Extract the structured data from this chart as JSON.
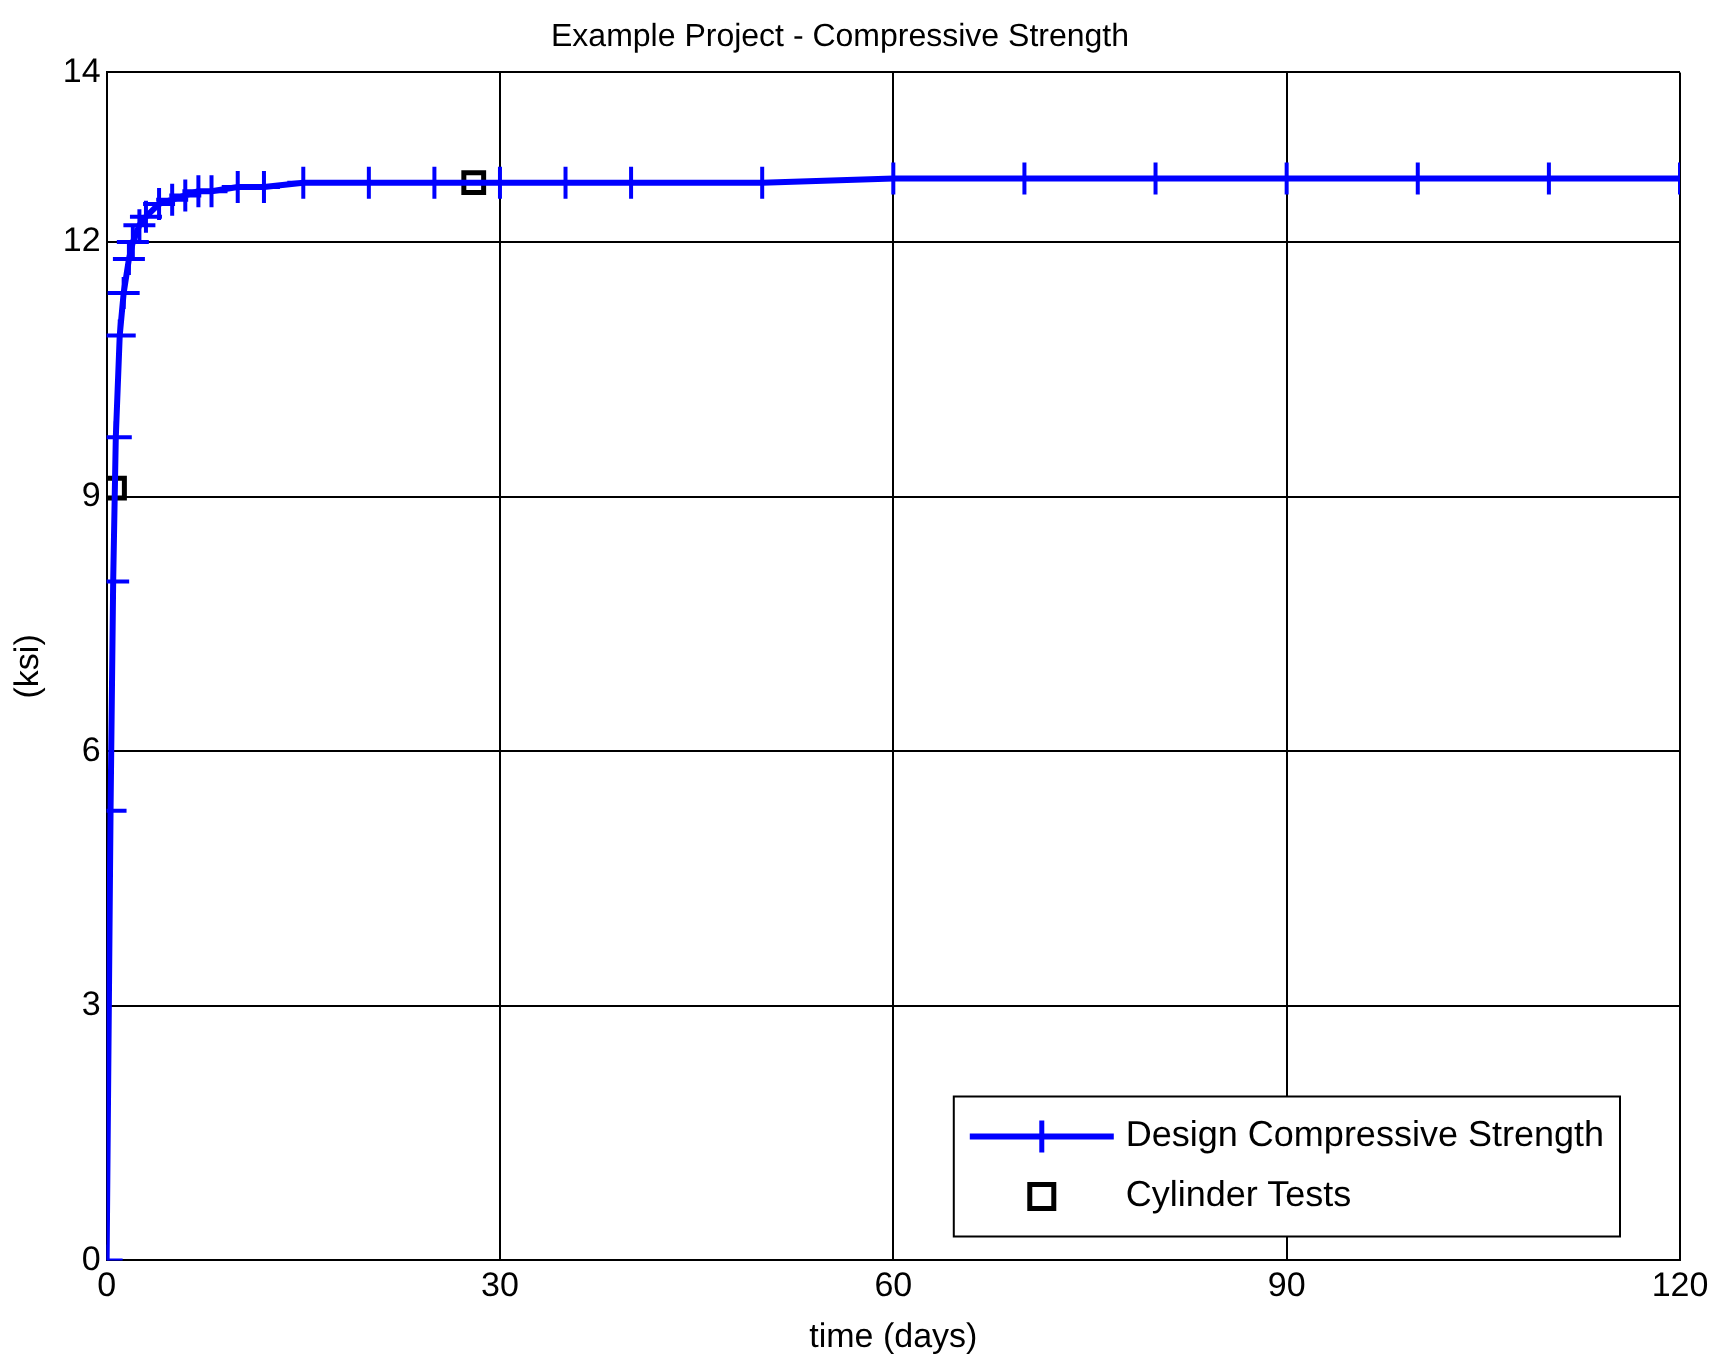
{
  "chart_data": {
    "type": "line",
    "title": "Example Project - Compressive Strength",
    "xlabel": "time (days)",
    "ylabel": "(ksi)",
    "xlim": [
      0,
      120
    ],
    "xticks": [
      0,
      30,
      60,
      90,
      120
    ],
    "ylim": [
      0,
      14
    ],
    "yticks": [
      0,
      3,
      6,
      9,
      12,
      14
    ],
    "grid": true,
    "legend": "bottom right",
    "series": [
      {
        "name": "Design Compressive Strength",
        "type": "line",
        "color": "#0000ff",
        "marker": "cross",
        "line_style": "solid",
        "x": [
          0,
          0.3,
          0.5,
          0.7,
          1,
          1.3,
          1.7,
          2,
          2.5,
          3,
          4,
          5,
          6,
          7,
          8,
          10,
          12,
          15,
          20,
          25,
          30,
          35,
          40,
          50,
          60,
          70,
          80,
          90,
          100,
          110,
          120
        ],
        "values": [
          0,
          5.3,
          8.0,
          9.7,
          10.9,
          11.4,
          11.8,
          12.0,
          12.2,
          12.3,
          12.45,
          12.5,
          12.55,
          12.6,
          12.6,
          12.65,
          12.65,
          12.7,
          12.7,
          12.7,
          12.7,
          12.7,
          12.7,
          12.7,
          12.75,
          12.75,
          12.75,
          12.75,
          12.75,
          12.75,
          12.75
        ]
      },
      {
        "name": "Cylinder Tests",
        "type": "scatter",
        "color": "#000000",
        "marker": "square",
        "x": [
          0.6,
          28
        ],
        "values": [
          9.1,
          12.7
        ]
      }
    ]
  }
}
